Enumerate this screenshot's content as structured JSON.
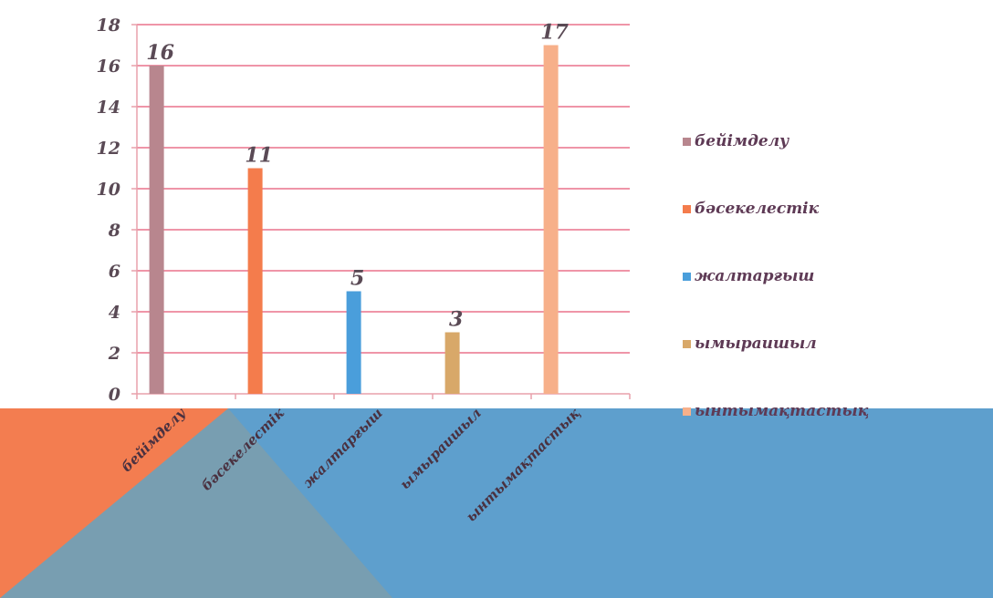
{
  "chart_data": {
    "type": "bar",
    "categories": [
      "бейімделу",
      "бәсекелестік",
      "жалтарғыш",
      "ымыраишыл",
      "ынтымақтастық"
    ],
    "values": [
      16,
      11,
      5,
      3,
      17
    ],
    "data_labels": [
      "16",
      "11",
      "5",
      "3",
      "17"
    ],
    "colors": [
      "#b8868e",
      "#f47c4c",
      "#4a9edb",
      "#d8a869",
      "#f7b08a"
    ],
    "legend": {
      "placement": "right",
      "entries": [
        "бейімделу",
        "бәсекелестік",
        "жалтарғыш",
        "ымыраишыл",
        "ынтымақтастық"
      ]
    },
    "yticks": [
      "0",
      "2",
      "4",
      "6",
      "8",
      "10",
      "12",
      "14",
      "16",
      "18"
    ],
    "ylim": [
      0,
      18
    ],
    "grid": true,
    "title": "",
    "xlabel": "",
    "ylabel": ""
  }
}
